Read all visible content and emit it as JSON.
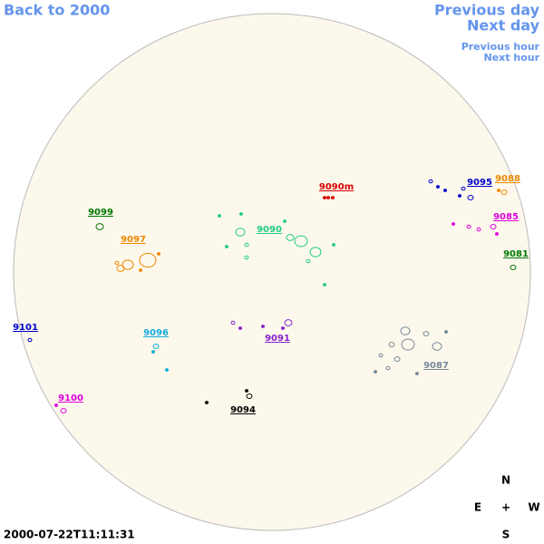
{
  "nav": {
    "back": "Back to 2000",
    "previous_day": "Previous day",
    "next_day": "Next day",
    "previous_hour": "Previous hour",
    "next_hour": "Next hour"
  },
  "regions": [
    {
      "label": "9090m",
      "color": "#dd0000"
    },
    {
      "label": "9095",
      "color": "#0000cc"
    },
    {
      "label": "9088",
      "color": "#ee8800"
    },
    {
      "label": "9099",
      "color": "#007700"
    },
    {
      "label": "9097",
      "color": "#ee8800"
    },
    {
      "label": "9090",
      "color": "#22cc88"
    },
    {
      "label": "9085",
      "color": "#dd00dd"
    },
    {
      "label": "9081",
      "color": "#007700"
    },
    {
      "label": "9101",
      "color": "#0000cc"
    },
    {
      "label": "9096",
      "color": "#11aadd"
    },
    {
      "label": "9091",
      "color": "#8822cc"
    },
    {
      "label": "9087",
      "color": "#778899"
    },
    {
      "label": "9100",
      "color": "#dd00dd"
    },
    {
      "label": "9094",
      "color": "#000000"
    }
  ],
  "compass": {
    "north": "N",
    "east": "E",
    "center": "+",
    "west": "W",
    "south": "S"
  },
  "timestamp": "2000-07-22T11:11:31"
}
